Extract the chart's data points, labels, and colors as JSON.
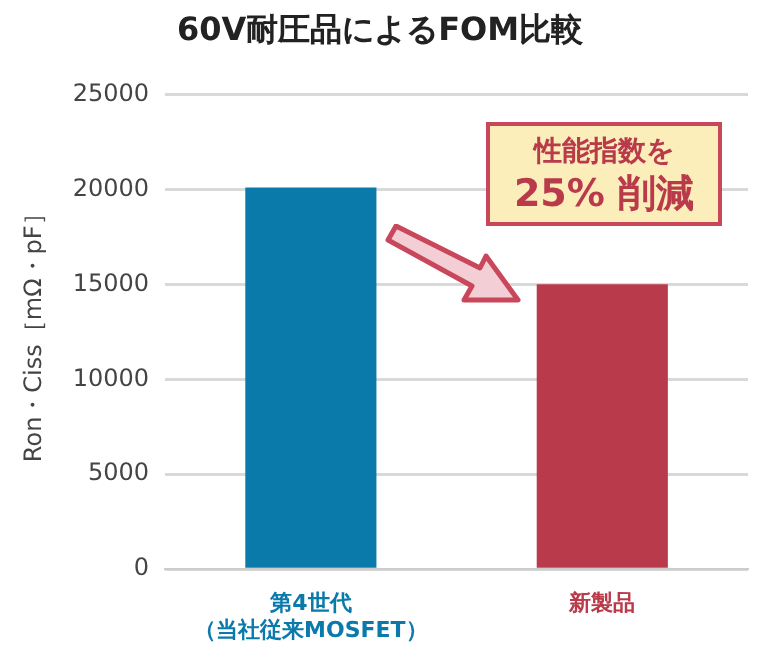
{
  "chart_data": {
    "type": "bar",
    "title": "60V耐圧品によるFOM比較",
    "ylabel": "Ron・Ciss［mΩ・pF］",
    "categories": [
      "第4世代（当社従来MOSFET）",
      "新製品"
    ],
    "values": [
      20100,
      15000
    ],
    "colors": [
      "#0a7aab",
      "#b93a4a"
    ],
    "ylim": [
      0,
      25000
    ],
    "yticks": [
      0,
      5000,
      10000,
      15000,
      20000,
      25000
    ],
    "grid": "y",
    "legend": false,
    "annotations": [
      "性能指数を\n25% 削減"
    ]
  }
}
